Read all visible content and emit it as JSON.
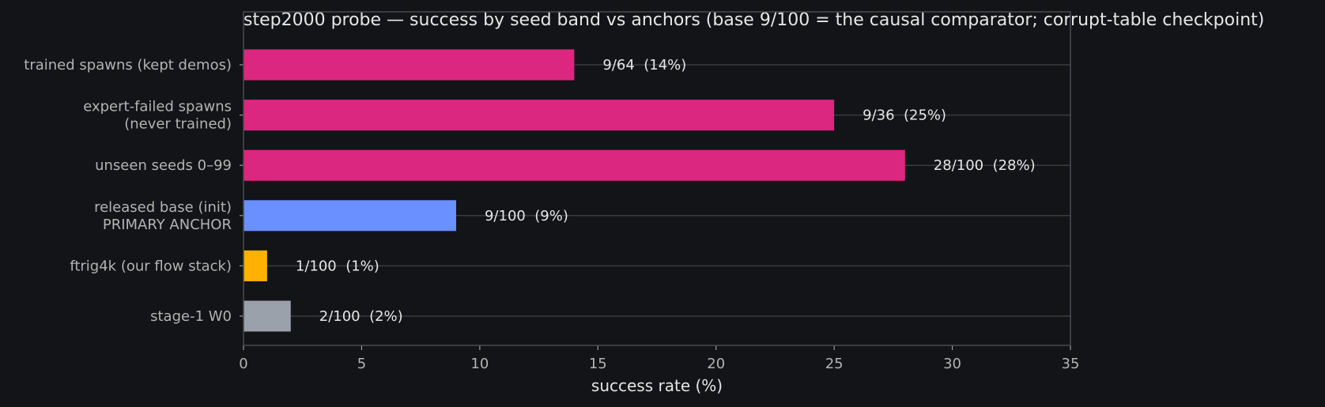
{
  "chart_data": {
    "type": "bar",
    "orientation": "horizontal",
    "title": "step2000 probe — success by seed band vs anchors (base 9/100 = the causal comparator; corrupt-table checkpoint)",
    "xlabel": "success rate (%)",
    "ylabel": "",
    "xlim": [
      0,
      35
    ],
    "xticks": [
      0,
      5,
      10,
      15,
      20,
      25,
      30,
      35
    ],
    "grid": "horizontal lines at each category",
    "categories": [
      [
        "trained spawns (kept demos)"
      ],
      [
        "expert-failed spawns",
        "(never trained)"
      ],
      [
        "unseen seeds 0–99"
      ],
      [
        "released base (init)",
        "PRIMARY ANCHOR"
      ],
      [
        "ftrig4k (our flow stack)"
      ],
      [
        "stage-1 W0"
      ]
    ],
    "values": [
      14,
      25,
      28,
      9,
      1,
      2
    ],
    "value_labels": [
      "9/64  (14%)",
      "9/36  (25%)",
      "28/100  (28%)",
      "9/100  (9%)",
      "1/100  (1%)",
      "2/100  (2%)"
    ],
    "colors": [
      "#db2780",
      "#db2780",
      "#db2780",
      "#6a8fff",
      "#ffb000",
      "#9aa1aa"
    ]
  }
}
